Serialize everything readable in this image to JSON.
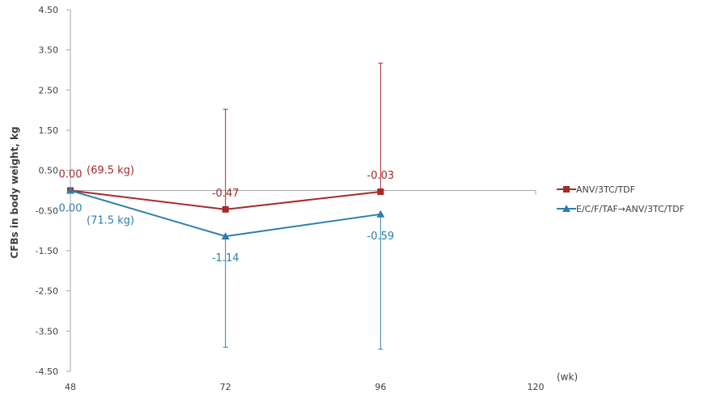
{
  "chart_data": {
    "type": "line",
    "ylabel": "CFBs in body weight, kg",
    "x_unit_label": "(wk)",
    "xlim": [
      48,
      120
    ],
    "ylim": [
      -4.5,
      4.5
    ],
    "x_ticks": [
      "48",
      "72",
      "96",
      "120"
    ],
    "y_ticks": [
      "4.50",
      "3.50",
      "2.50",
      "1.50",
      "0.50",
      "-0.50",
      "-1.50",
      "-2.50",
      "-3.50",
      "-4.50"
    ],
    "legend_position": "right",
    "series": [
      {
        "name": "ANV/3TC/TDF",
        "color": "#a52a2a",
        "marker": "square",
        "x": [
          48,
          72,
          96
        ],
        "y": [
          0.0,
          -0.47,
          -0.03
        ],
        "error_upper": [
          0.0,
          2.02,
          3.17
        ],
        "error_lower": [
          0.0,
          -0.47,
          -0.03
        ],
        "labels": [
          "0.00",
          "-0.47",
          "-0.03"
        ],
        "baseline_note": "(69.5 kg)"
      },
      {
        "name": "E/C/F/TAF→ANV/3TC/TDF",
        "color": "#2e7fa8",
        "marker": "triangle",
        "x": [
          48,
          72,
          96
        ],
        "y": [
          0.0,
          -1.14,
          -0.59
        ],
        "error_upper": [
          0.0,
          -1.14,
          -0.59
        ],
        "error_lower": [
          0.0,
          -3.9,
          -3.95
        ],
        "labels": [
          "0.00",
          "-1.14",
          "-0.59"
        ],
        "baseline_note": "(71.5 kg)"
      }
    ]
  }
}
